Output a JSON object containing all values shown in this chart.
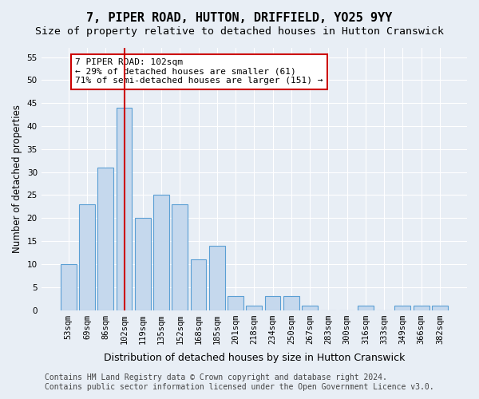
{
  "title": "7, PIPER ROAD, HUTTON, DRIFFIELD, YO25 9YY",
  "subtitle": "Size of property relative to detached houses in Hutton Cranswick",
  "xlabel": "Distribution of detached houses by size in Hutton Cranswick",
  "ylabel": "Number of detached properties",
  "categories": [
    "53sqm",
    "69sqm",
    "86sqm",
    "102sqm",
    "119sqm",
    "135sqm",
    "152sqm",
    "168sqm",
    "185sqm",
    "201sqm",
    "218sqm",
    "234sqm",
    "250sqm",
    "267sqm",
    "283sqm",
    "300sqm",
    "316sqm",
    "333sqm",
    "349sqm",
    "366sqm",
    "382sqm"
  ],
  "values": [
    10,
    23,
    31,
    44,
    20,
    25,
    23,
    11,
    14,
    3,
    1,
    3,
    3,
    1,
    0,
    0,
    1,
    0,
    1,
    1,
    1
  ],
  "bar_color": "#c5d8ed",
  "bar_edge_color": "#5a9fd4",
  "highlight_index": 3,
  "highlight_line_color": "#cc0000",
  "ylim": [
    0,
    57
  ],
  "yticks": [
    0,
    5,
    10,
    15,
    20,
    25,
    30,
    35,
    40,
    45,
    50,
    55
  ],
  "annotation_text": "7 PIPER ROAD: 102sqm\n← 29% of detached houses are smaller (61)\n71% of semi-detached houses are larger (151) →",
  "annotation_box_color": "#ffffff",
  "annotation_box_edge": "#cc0000",
  "footer_line1": "Contains HM Land Registry data © Crown copyright and database right 2024.",
  "footer_line2": "Contains public sector information licensed under the Open Government Licence v3.0.",
  "background_color": "#e8eef5",
  "plot_bg_color": "#e8eef5",
  "title_fontsize": 11,
  "subtitle_fontsize": 9.5,
  "xlabel_fontsize": 9,
  "ylabel_fontsize": 8.5,
  "tick_fontsize": 7.5,
  "footer_fontsize": 7,
  "annotation_fontsize": 8
}
